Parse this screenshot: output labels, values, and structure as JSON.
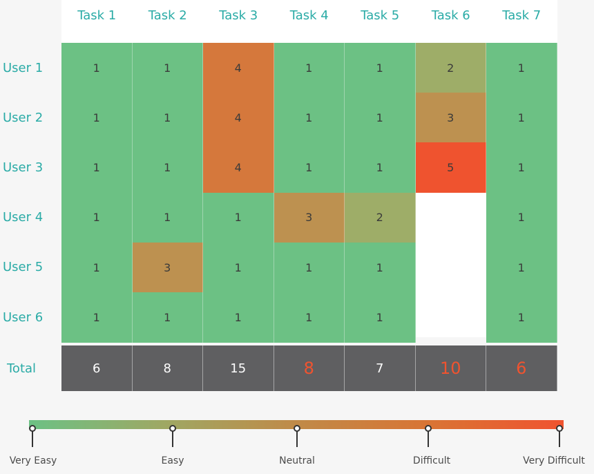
{
  "chart_data": {
    "type": "heatmap",
    "columns": [
      "Task 1",
      "Task 2",
      "Task 3",
      "Task 4",
      "Task 5",
      "Task 6",
      "Task 7"
    ],
    "rows": [
      "User 1",
      "User 2",
      "User 3",
      "User 4",
      "User 5",
      "User 6"
    ],
    "values": [
      [
        1,
        1,
        4,
        1,
        1,
        2,
        1
      ],
      [
        1,
        1,
        4,
        1,
        1,
        3,
        1
      ],
      [
        1,
        1,
        4,
        1,
        1,
        5,
        1
      ],
      [
        1,
        1,
        1,
        3,
        2,
        null,
        1
      ],
      [
        1,
        3,
        1,
        1,
        1,
        null,
        1
      ],
      [
        1,
        1,
        1,
        1,
        1,
        null,
        1
      ]
    ],
    "total_label": "Total",
    "totals": [
      6,
      8,
      15,
      8,
      7,
      10,
      6
    ],
    "totals_highlighted": [
      false,
      false,
      false,
      true,
      false,
      true,
      true
    ],
    "scale": {
      "min": 1,
      "max": 5,
      "labels": [
        "Very Easy",
        "Easy",
        "Neutral",
        "Difficult",
        "Very Difficult"
      ]
    },
    "colors": {
      "1": "#6cc184",
      "2": "#9ead68",
      "3": "#bd9150",
      "4": "#d5783c",
      "5": "#ef532f",
      "header_text": "#2aaba6",
      "total_bg": "#5f5f61",
      "highlight_text": "#f0532f"
    }
  }
}
